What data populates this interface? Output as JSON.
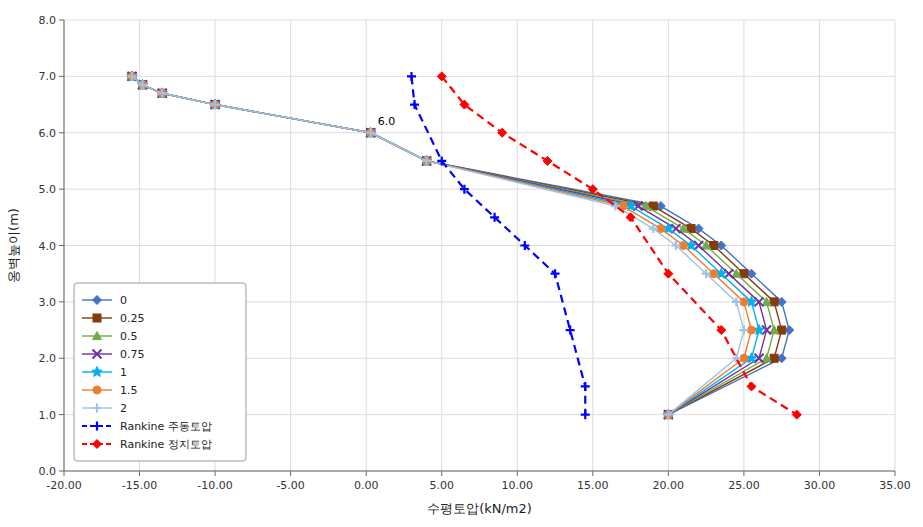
{
  "chart_data": {
    "type": "line",
    "x_label": "수평토압(kN/m2)",
    "y_label": "옹벽높이(m)",
    "xlim": [
      -20,
      35
    ],
    "ylim": [
      0,
      8
    ],
    "xticks": [
      {
        "value": -20,
        "label": "-20.00"
      },
      {
        "value": -15,
        "label": "-15.00"
      },
      {
        "value": -10,
        "label": "-10.00"
      },
      {
        "value": -5,
        "label": "-5.00"
      },
      {
        "value": 0,
        "label": "0.00"
      },
      {
        "value": 5,
        "label": "5.00"
      },
      {
        "value": 10,
        "label": "10.00"
      },
      {
        "value": 15,
        "label": "15.00"
      },
      {
        "value": 20,
        "label": "20.00"
      },
      {
        "value": 25,
        "label": "25.00"
      },
      {
        "value": 30,
        "label": "30.00"
      },
      {
        "value": 35,
        "label": "35.00"
      }
    ],
    "yticks": [
      {
        "value": 0.0,
        "label": "0.0"
      },
      {
        "value": 1.0,
        "label": "1.0"
      },
      {
        "value": 2.0,
        "label": "2.0"
      },
      {
        "value": 3.0,
        "label": "3.0"
      },
      {
        "value": 4.0,
        "label": "4.0"
      },
      {
        "value": 5.0,
        "label": "5.0"
      },
      {
        "value": 6.0,
        "label": "6.0"
      },
      {
        "value": 7.0,
        "label": "7.0"
      },
      {
        "value": 8.0,
        "label": "8.0"
      }
    ],
    "grid": true,
    "legend": "lower left",
    "annotations": [
      {
        "text": "6.0",
        "x": 0.3,
        "y": 6.0
      }
    ],
    "series": [
      {
        "name": "0",
        "color": "#4472C4",
        "marker": "diamond",
        "line_style": "solid",
        "x": [
          -15.5,
          -14.8,
          -13.5,
          -10.0,
          0.3,
          4.0,
          19.5,
          22.0,
          23.5,
          25.5,
          27.5,
          28.0,
          27.5,
          20.0
        ],
        "values": [
          7.0,
          6.85,
          6.7,
          6.5,
          6.0,
          5.5,
          4.7,
          4.3,
          4.0,
          3.5,
          3.0,
          2.5,
          2.0,
          1.0
        ]
      },
      {
        "name": "0.25",
        "color": "#843C0C",
        "marker": "square",
        "line_style": "solid",
        "x": [
          -15.5,
          -14.8,
          -13.5,
          -10.0,
          0.3,
          4.0,
          19.0,
          21.5,
          23.0,
          25.0,
          27.0,
          27.5,
          27.0,
          20.0
        ],
        "values": [
          7.0,
          6.85,
          6.7,
          6.5,
          6.0,
          5.5,
          4.7,
          4.3,
          4.0,
          3.5,
          3.0,
          2.5,
          2.0,
          1.0
        ]
      },
      {
        "name": "0.5",
        "color": "#70AD47",
        "marker": "triangle",
        "line_style": "solid",
        "x": [
          -15.5,
          -14.8,
          -13.5,
          -10.0,
          0.3,
          4.0,
          18.5,
          21.0,
          22.5,
          24.5,
          26.5,
          27.0,
          26.5,
          20.0
        ],
        "values": [
          7.0,
          6.85,
          6.7,
          6.5,
          6.0,
          5.5,
          4.7,
          4.3,
          4.0,
          3.5,
          3.0,
          2.5,
          2.0,
          1.0
        ]
      },
      {
        "name": "0.75",
        "color": "#7030A0",
        "marker": "x",
        "line_style": "solid",
        "x": [
          -15.5,
          -14.8,
          -13.5,
          -10.0,
          0.3,
          4.0,
          18.0,
          20.5,
          22.0,
          24.0,
          26.0,
          26.5,
          26.0,
          20.0
        ],
        "values": [
          7.0,
          6.85,
          6.7,
          6.5,
          6.0,
          5.5,
          4.7,
          4.3,
          4.0,
          3.5,
          3.0,
          2.5,
          2.0,
          1.0
        ]
      },
      {
        "name": "1",
        "color": "#00B0F0",
        "marker": "star",
        "line_style": "solid",
        "x": [
          -15.5,
          -14.8,
          -13.5,
          -10.0,
          0.3,
          4.0,
          17.5,
          20.0,
          21.5,
          23.5,
          25.5,
          26.0,
          25.5,
          20.0
        ],
        "values": [
          7.0,
          6.85,
          6.7,
          6.5,
          6.0,
          5.5,
          4.7,
          4.3,
          4.0,
          3.5,
          3.0,
          2.5,
          2.0,
          1.0
        ]
      },
      {
        "name": "1.5",
        "color": "#ED7D31",
        "marker": "circle",
        "line_style": "solid",
        "x": [
          -15.5,
          -14.8,
          -13.5,
          -10.0,
          0.3,
          4.0,
          17.0,
          19.5,
          21.0,
          23.0,
          25.0,
          25.5,
          25.0,
          20.0
        ],
        "values": [
          7.0,
          6.85,
          6.7,
          6.5,
          6.0,
          5.5,
          4.7,
          4.3,
          4.0,
          3.5,
          3.0,
          2.5,
          2.0,
          1.0
        ]
      },
      {
        "name": "2",
        "color": "#9DC3E6",
        "marker": "plus",
        "line_style": "solid",
        "x": [
          -15.5,
          -14.8,
          -13.5,
          -10.0,
          0.3,
          4.0,
          16.5,
          19.0,
          20.5,
          22.5,
          24.5,
          25.0,
          24.5,
          20.0
        ],
        "values": [
          7.0,
          6.85,
          6.7,
          6.5,
          6.0,
          5.5,
          4.7,
          4.3,
          4.0,
          3.5,
          3.0,
          2.5,
          2.0,
          1.0
        ]
      },
      {
        "name": "Rankine 주동토압",
        "color": "#0000FF",
        "marker": "plus",
        "line_style": "dashed",
        "x": [
          3.0,
          3.2,
          5.0,
          6.5,
          8.5,
          10.5,
          12.5,
          13.5,
          14.5,
          14.5
        ],
        "values": [
          7.0,
          6.5,
          5.5,
          5.0,
          4.5,
          4.0,
          3.5,
          2.5,
          1.5,
          1.0
        ]
      },
      {
        "name": "Rankine 정지토압",
        "color": "#FF0000",
        "marker": "diamond",
        "line_style": "dashed",
        "x": [
          5.0,
          6.5,
          9.0,
          12.0,
          15.0,
          17.5,
          20.0,
          23.5,
          25.5,
          28.5
        ],
        "values": [
          7.0,
          6.5,
          6.0,
          5.5,
          5.0,
          4.5,
          3.5,
          2.5,
          1.5,
          1.0
        ]
      }
    ]
  }
}
